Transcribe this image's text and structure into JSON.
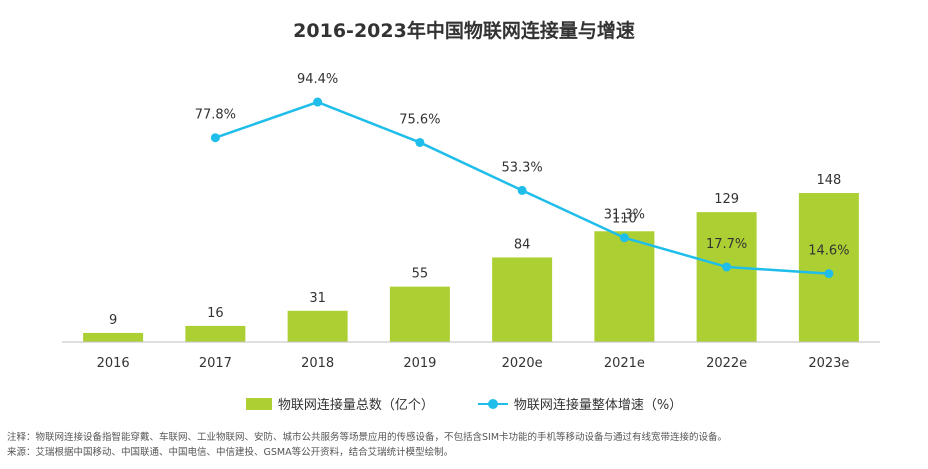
{
  "chart_data": {
    "type": "bar+line",
    "title": "2016-2023年中国物联网连接量与增速",
    "categories": [
      "2016",
      "2017",
      "2018",
      "2019",
      "2020e",
      "2021e",
      "2022e",
      "2023e"
    ],
    "series": [
      {
        "name": "物联网连接量总数（亿个）",
        "type": "bar",
        "values": [
          9,
          16,
          31,
          55,
          84,
          110,
          129,
          148
        ],
        "labels": [
          "9",
          "16",
          "31",
          "55",
          "84",
          "110",
          "129",
          "148"
        ]
      },
      {
        "name": "物联网连接量整体增速（%）",
        "type": "line",
        "values": [
          null,
          77.8,
          94.4,
          75.6,
          53.3,
          31.3,
          17.7,
          14.6
        ],
        "labels": [
          "",
          "77.8%",
          "94.4%",
          "75.6%",
          "53.3%",
          "31.3%",
          "17.7%",
          "14.6%"
        ]
      }
    ],
    "legend_position": "bottom",
    "grid": false
  },
  "colors": {
    "bar": "#acd034",
    "line": "#1fbde9",
    "axis": "#bfbfbf"
  },
  "notes": {
    "note": "注释：物联网连接设备指智能穿戴、车联网、工业物联网、安防、城市公共服务等场景应用的传感设备，不包括含SIM卡功能的手机等移动设备与通过有线宽带连接的设备。",
    "source": "来源：艾瑞根据中国移动、中国联通、中国电信、中信建投、GSMA等公开资料，结合艾瑞统计模型绘制。"
  }
}
